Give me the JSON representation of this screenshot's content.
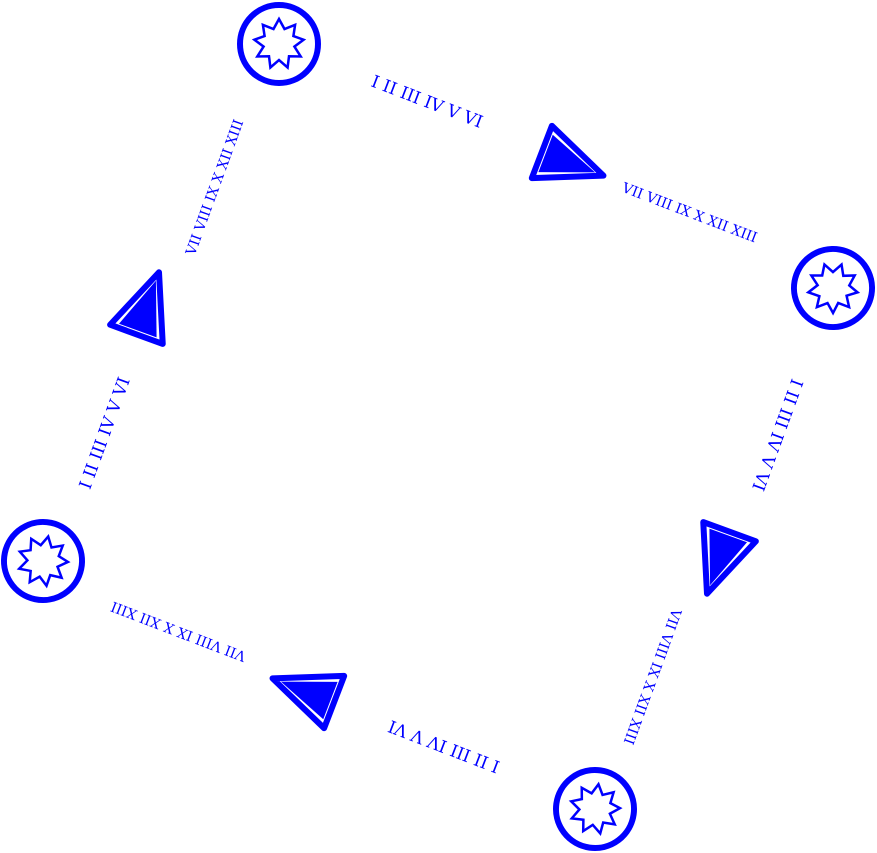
{
  "diagram": {
    "color": "#0000ff",
    "background": "#ffffff",
    "node_icon": "nine-point-star-in-circle-icon",
    "arrow_icon": "half-filled-triangle-arrow-icon",
    "edge_labels": {
      "top": {
        "first": "I II III IV V VI",
        "second": "VII VIII IX X XII XIII"
      },
      "right": {
        "first": "I II III IV V VI",
        "second": "VII VIII IX X XII XIII"
      },
      "bottom": {
        "first": "I II III IV V VI",
        "second": "VII VIII IX X XII XIII"
      },
      "left": {
        "first": "I II III IV V VI",
        "second": "VII VIII IX X XII XIII"
      }
    }
  }
}
